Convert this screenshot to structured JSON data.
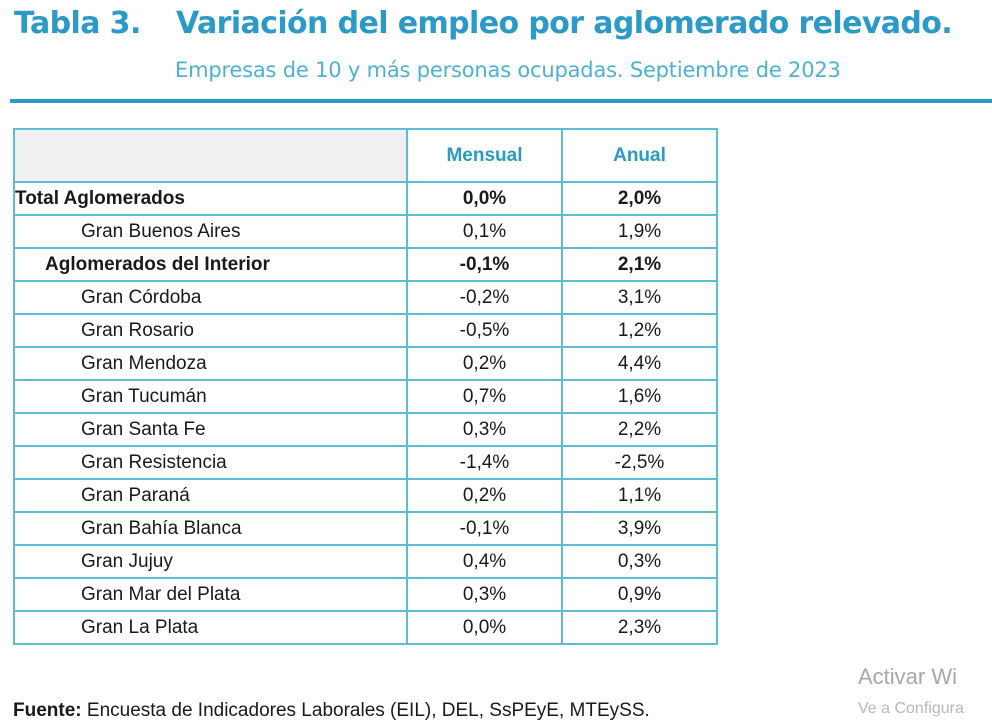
{
  "header": {
    "table_number": "Tabla 3.",
    "title": "Variación del empleo por aglomerado relevado.",
    "subtitle_prefix": "Empresas de 10 y más personas ocupadas.",
    "subtitle_period": "Septiembre de 2023"
  },
  "table": {
    "columns": [
      "",
      "Mensual",
      "Anual"
    ],
    "rows": [
      {
        "name": "Total Aglomerados",
        "mensual": "0,0%",
        "anual": "2,0%",
        "level": 0,
        "bold": true
      },
      {
        "name": "Gran Buenos Aires",
        "mensual": "0,1%",
        "anual": "1,9%",
        "level": 2,
        "bold": false
      },
      {
        "name": "Aglomerados del Interior",
        "mensual": "-0,1%",
        "anual": "2,1%",
        "level": 1,
        "bold": true
      },
      {
        "name": "Gran Córdoba",
        "mensual": "-0,2%",
        "anual": "3,1%",
        "level": 2,
        "bold": false
      },
      {
        "name": "Gran Rosario",
        "mensual": "-0,5%",
        "anual": "1,2%",
        "level": 2,
        "bold": false
      },
      {
        "name": "Gran Mendoza",
        "mensual": "0,2%",
        "anual": "4,4%",
        "level": 2,
        "bold": false
      },
      {
        "name": "Gran Tucumán",
        "mensual": "0,7%",
        "anual": "1,6%",
        "level": 2,
        "bold": false
      },
      {
        "name": "Gran Santa Fe",
        "mensual": "0,3%",
        "anual": "2,2%",
        "level": 2,
        "bold": false
      },
      {
        "name": "Gran Resistencia",
        "mensual": "-1,4%",
        "anual": "-2,5%",
        "level": 2,
        "bold": false
      },
      {
        "name": "Gran Paraná",
        "mensual": "0,2%",
        "anual": "1,1%",
        "level": 2,
        "bold": false
      },
      {
        "name": "Gran Bahía Blanca",
        "mensual": "-0,1%",
        "anual": "3,9%",
        "level": 2,
        "bold": false
      },
      {
        "name": "Gran Jujuy",
        "mensual": "0,4%",
        "anual": "0,3%",
        "level": 2,
        "bold": false
      },
      {
        "name": "Gran Mar del Plata",
        "mensual": "0,3%",
        "anual": "0,9%",
        "level": 2,
        "bold": false
      },
      {
        "name": "Gran La Plata",
        "mensual": "0,0%",
        "anual": "2,3%",
        "level": 2,
        "bold": false
      }
    ]
  },
  "footer": {
    "label": "Fuente:",
    "text": "Encuesta de Indicadores Laborales (EIL), DEL, SsPEyE, MTEySS."
  },
  "watermark": {
    "line1": "Activar Wi",
    "line2": "Ve a Configura"
  },
  "colors": {
    "accent": "#2b9ac8",
    "table_border": "#5fbcd6"
  }
}
